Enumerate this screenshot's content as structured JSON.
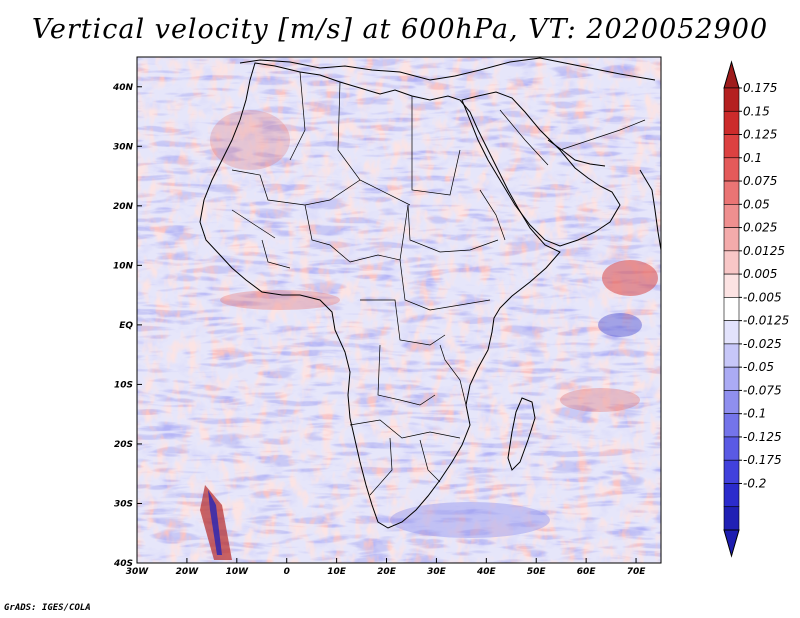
{
  "title": "Vertical velocity [m/s] at 600hPa, VT: 2020052900",
  "footer": "GrADS: IGES/COLA",
  "chart_data": {
    "type": "heatmap",
    "field": "Vertical velocity",
    "units": "m/s",
    "level": "600hPa",
    "valid_time": "2020052900",
    "lon_range": [
      -30,
      75
    ],
    "lat_range": [
      -40,
      45
    ],
    "x_ticks": [
      {
        "value": -30,
        "label": "30W"
      },
      {
        "value": -20,
        "label": "20W"
      },
      {
        "value": -10,
        "label": "10W"
      },
      {
        "value": 0,
        "label": "0"
      },
      {
        "value": 10,
        "label": "10E"
      },
      {
        "value": 20,
        "label": "20E"
      },
      {
        "value": 30,
        "label": "30E"
      },
      {
        "value": 40,
        "label": "40E"
      },
      {
        "value": 50,
        "label": "50E"
      },
      {
        "value": 60,
        "label": "60E"
      },
      {
        "value": 70,
        "label": "70E"
      }
    ],
    "y_ticks": [
      {
        "value": 40,
        "label": "40N"
      },
      {
        "value": 30,
        "label": "30N"
      },
      {
        "value": 20,
        "label": "20N"
      },
      {
        "value": 10,
        "label": "10N"
      },
      {
        "value": 0,
        "label": "EQ"
      },
      {
        "value": -10,
        "label": "10S"
      },
      {
        "value": -20,
        "label": "20S"
      },
      {
        "value": -30,
        "label": "30S"
      },
      {
        "value": -40,
        "label": "40S"
      }
    ],
    "colorbar": {
      "labels": [
        "0.175",
        "0.15",
        "0.125",
        "0.1",
        "0.075",
        "0.05",
        "0.025",
        "0.0125",
        "0.005",
        "-0.005",
        "-0.0125",
        "-0.025",
        "-0.05",
        "-0.075",
        "-0.1",
        "-0.125",
        "-0.175",
        "-0.2"
      ],
      "colors": [
        "#b42020",
        "#cc2b2b",
        "#dc4141",
        "#e45a5a",
        "#ea7474",
        "#ef8f8f",
        "#f4abab",
        "#f8c7c7",
        "#fce3e3",
        "#ffffff",
        "#e3e3fc",
        "#c7c7f8",
        "#ababf4",
        "#8f8fef",
        "#7474ea",
        "#5a5ae4",
        "#4141dc",
        "#2b2bcc",
        "#2020b4"
      ],
      "max_color": "#9e1b1b",
      "min_color": "#1d1db0"
    }
  }
}
